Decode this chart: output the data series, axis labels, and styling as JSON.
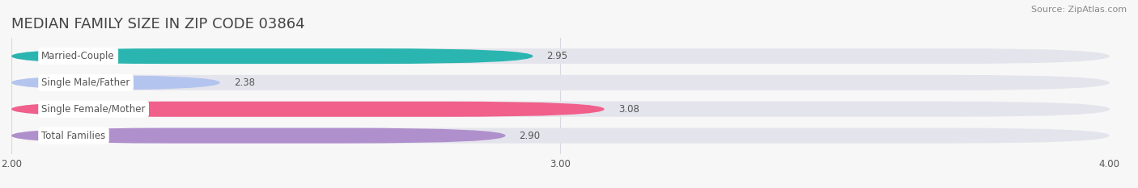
{
  "title": "MEDIAN FAMILY SIZE IN ZIP CODE 03864",
  "source": "Source: ZipAtlas.com",
  "categories": [
    "Married-Couple",
    "Single Male/Father",
    "Single Female/Mother",
    "Total Families"
  ],
  "values": [
    2.95,
    2.38,
    3.08,
    2.9
  ],
  "bar_colors": [
    "#2ab5b0",
    "#b3c4ee",
    "#f0608a",
    "#b090cc"
  ],
  "bar_bg_color": "#e4e4ec",
  "xlim": [
    2.0,
    4.0
  ],
  "xticks": [
    2.0,
    3.0,
    4.0
  ],
  "xtick_labels": [
    "2.00",
    "3.00",
    "4.00"
  ],
  "bar_height": 0.58,
  "label_fontsize": 8.5,
  "value_fontsize": 8.5,
  "title_fontsize": 13,
  "source_fontsize": 8,
  "background_color": "#f7f7f7",
  "label_bg_color": "#ffffff",
  "grid_color": "#d8d8e0",
  "text_color": "#555555",
  "title_color": "#444444"
}
